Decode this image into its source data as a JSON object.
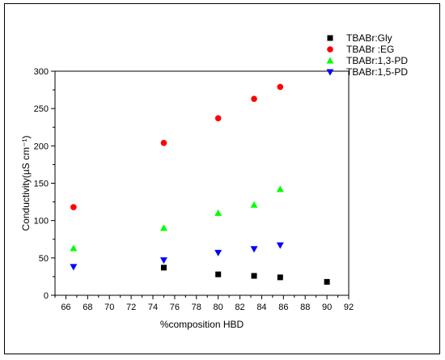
{
  "chart_data": {
    "type": "scatter",
    "xlabel": "%composition HBD",
    "ylabel": "Conductivity(µS cm⁻¹)",
    "xlim": [
      65,
      92
    ],
    "ylim": [
      0,
      300
    ],
    "xticks": [
      66,
      68,
      70,
      72,
      74,
      76,
      78,
      80,
      82,
      84,
      86,
      88,
      90,
      92
    ],
    "yticks": [
      0,
      50,
      100,
      150,
      200,
      250,
      300
    ],
    "grid": false,
    "legend_position": "top-right",
    "series": [
      {
        "name": "TBABr:Gly",
        "marker": "square",
        "color": "#000000",
        "x": [
          75,
          80,
          83.3,
          85.7,
          90
        ],
        "y": [
          37,
          28,
          26,
          24,
          18
        ]
      },
      {
        "name": "TBABr :EG",
        "marker": "circle",
        "color": "#ff0000",
        "x": [
          66.7,
          75,
          80,
          83.3,
          85.7
        ],
        "y": [
          118,
          204,
          237,
          263,
          279
        ]
      },
      {
        "name": "TBABr:1,3-PD",
        "marker": "triangle-up",
        "color": "#00ff00",
        "x": [
          66.7,
          75,
          80,
          83.3,
          85.7
        ],
        "y": [
          63,
          90,
          110,
          121,
          142
        ]
      },
      {
        "name": "TBABr:1,5-PD",
        "marker": "triangle-down",
        "color": "#0000ff",
        "x": [
          66.7,
          75,
          80,
          83.3,
          85.7
        ],
        "y": [
          38,
          47,
          57,
          62,
          67
        ]
      }
    ]
  }
}
